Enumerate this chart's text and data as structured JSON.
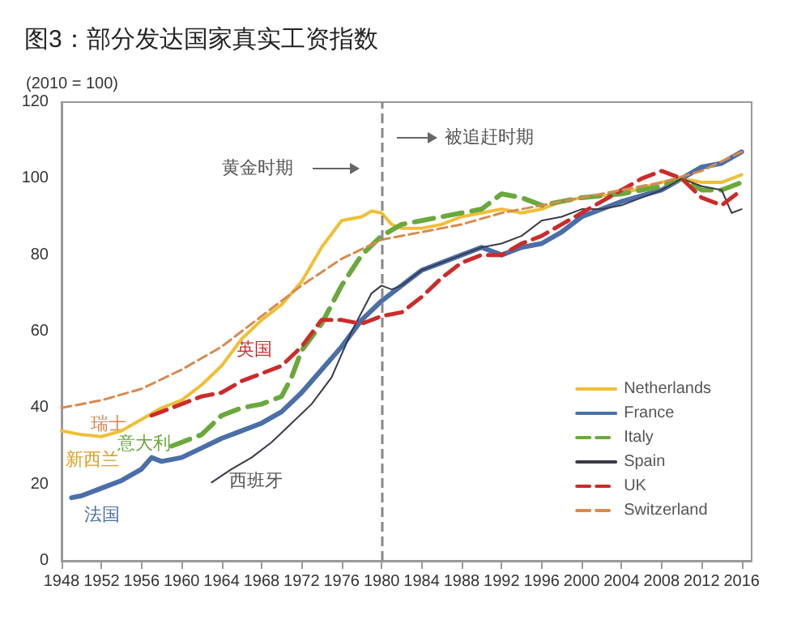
{
  "chart_data": {
    "type": "line",
    "title": "图3：部分发达国家真实工资指数",
    "ylabel": "(2010 = 100)",
    "xlim": [
      1948,
      2017
    ],
    "xticks": [
      1948,
      1952,
      1956,
      1960,
      1964,
      1968,
      1972,
      1976,
      1980,
      1984,
      1988,
      1992,
      1996,
      2000,
      2004,
      2008,
      2012,
      2016
    ],
    "ylim": [
      0,
      120
    ],
    "yticks": [
      0,
      20,
      40,
      60,
      80,
      100,
      120
    ],
    "grid": false,
    "legend": "bottom right",
    "marker": "none",
    "series": [
      {
        "name": "Netherlands",
        "color": "#efbf35",
        "line_style": "solid",
        "x": [
          1948,
          1950,
          1952,
          1954,
          1956,
          1958,
          1960,
          1962,
          1964,
          1966,
          1968,
          1970,
          1972,
          1974,
          1976,
          1978,
          1979,
          1980,
          1981,
          1982,
          1984,
          1986,
          1988,
          1990,
          1992,
          1994,
          1996,
          1998,
          2000,
          2004,
          2008,
          2010,
          2012,
          2014,
          2016
        ],
        "values": [
          34,
          33,
          32.5,
          34,
          37,
          40,
          42,
          46,
          51,
          58,
          63,
          67,
          73,
          82,
          89,
          90,
          91.5,
          91,
          88,
          87,
          87,
          88,
          90,
          91,
          92,
          91,
          92,
          94,
          95,
          96,
          99,
          100,
          99,
          99,
          101
        ]
      },
      {
        "name": "France",
        "color": "#4a6ea8",
        "line_style": "solid",
        "x": [
          1949,
          1950,
          1952,
          1954,
          1956,
          1957,
          1958,
          1960,
          1962,
          1964,
          1966,
          1968,
          1970,
          1972,
          1974,
          1976,
          1978,
          1980,
          1982,
          1984,
          1986,
          1988,
          1990,
          1992,
          1994,
          1996,
          1998,
          2000,
          2004,
          2008,
          2010,
          2012,
          2014,
          2016
        ],
        "values": [
          16.5,
          17,
          19,
          21,
          24,
          27,
          26,
          27,
          29.5,
          32,
          34,
          36,
          39,
          44,
          50,
          56,
          63,
          68,
          72,
          76,
          78,
          80,
          82,
          80,
          82,
          83,
          86,
          90,
          94,
          97,
          100,
          103,
          104,
          107
        ]
      },
      {
        "name": "Italy",
        "color": "#6aa83c",
        "line_style": "dashed",
        "x": [
          1959,
          1962,
          1964,
          1966,
          1968,
          1970,
          1971,
          1972,
          1974,
          1976,
          1978,
          1980,
          1982,
          1984,
          1988,
          1990,
          1992,
          1994,
          1996,
          2000,
          2004,
          2008,
          2010,
          2012,
          2014,
          2016
        ],
        "values": [
          30,
          33,
          38,
          40,
          41,
          43,
          48,
          55,
          62,
          72,
          80,
          85,
          88,
          89,
          91,
          92,
          96,
          95,
          93,
          95,
          96,
          98,
          100,
          97,
          97,
          99
        ]
      },
      {
        "name": "Spain",
        "color": "#3a3a4a",
        "line_style": "solid",
        "x": [
          1963,
          1965,
          1967,
          1969,
          1971,
          1973,
          1975,
          1977,
          1979,
          1980,
          1981,
          1982,
          1984,
          1986,
          1988,
          1990,
          1992,
          1994,
          1996,
          1998,
          2000,
          2002,
          2004,
          2006,
          2008,
          2010,
          2012,
          2014,
          2015,
          2016
        ],
        "values": [
          20.5,
          24,
          27,
          31,
          36,
          41,
          48,
          60,
          70,
          72,
          71,
          72,
          76,
          78,
          80,
          82,
          83,
          85,
          89,
          90,
          92,
          92,
          93,
          95,
          97,
          100,
          98,
          97,
          91,
          92
        ]
      },
      {
        "name": "UK",
        "color": "#cc2b2b",
        "line_style": "dashed",
        "x": [
          1957,
          1958,
          1960,
          1962,
          1964,
          1966,
          1968,
          1970,
          1972,
          1974,
          1976,
          1978,
          1980,
          1982,
          1984,
          1986,
          1988,
          1990,
          1992,
          1994,
          1996,
          1998,
          2000,
          2002,
          2004,
          2006,
          2008,
          2010,
          2012,
          2014,
          2016
        ],
        "values": [
          38,
          39,
          41,
          43,
          44,
          47,
          49,
          51,
          56,
          63,
          63,
          62,
          64,
          65,
          69,
          74,
          78,
          80,
          80,
          83,
          85,
          88,
          91,
          94,
          97,
          100,
          102,
          100,
          95,
          93,
          97
        ]
      },
      {
        "name": "Switzerland",
        "color": "#d9894f",
        "line_style": "dashed",
        "x": [
          1948,
          1952,
          1956,
          1960,
          1964,
          1968,
          1972,
          1976,
          1980,
          1984,
          1988,
          1992,
          1996,
          2000,
          2004,
          2008,
          2012,
          2016
        ],
        "values": [
          40,
          42,
          45,
          50,
          56,
          64,
          72,
          79,
          84,
          86,
          88,
          91,
          93,
          95,
          97,
          99,
          102,
          107
        ]
      }
    ],
    "ref_lines": [
      {
        "axis": "x",
        "value": 1980,
        "color": "#888888",
        "line_style": "dashed"
      }
    ],
    "annotations": [
      "瑞士",
      "新西兰",
      "法国",
      "意大利",
      "英国",
      "西班牙",
      "黄金时期",
      "被追赶时期"
    ]
  }
}
